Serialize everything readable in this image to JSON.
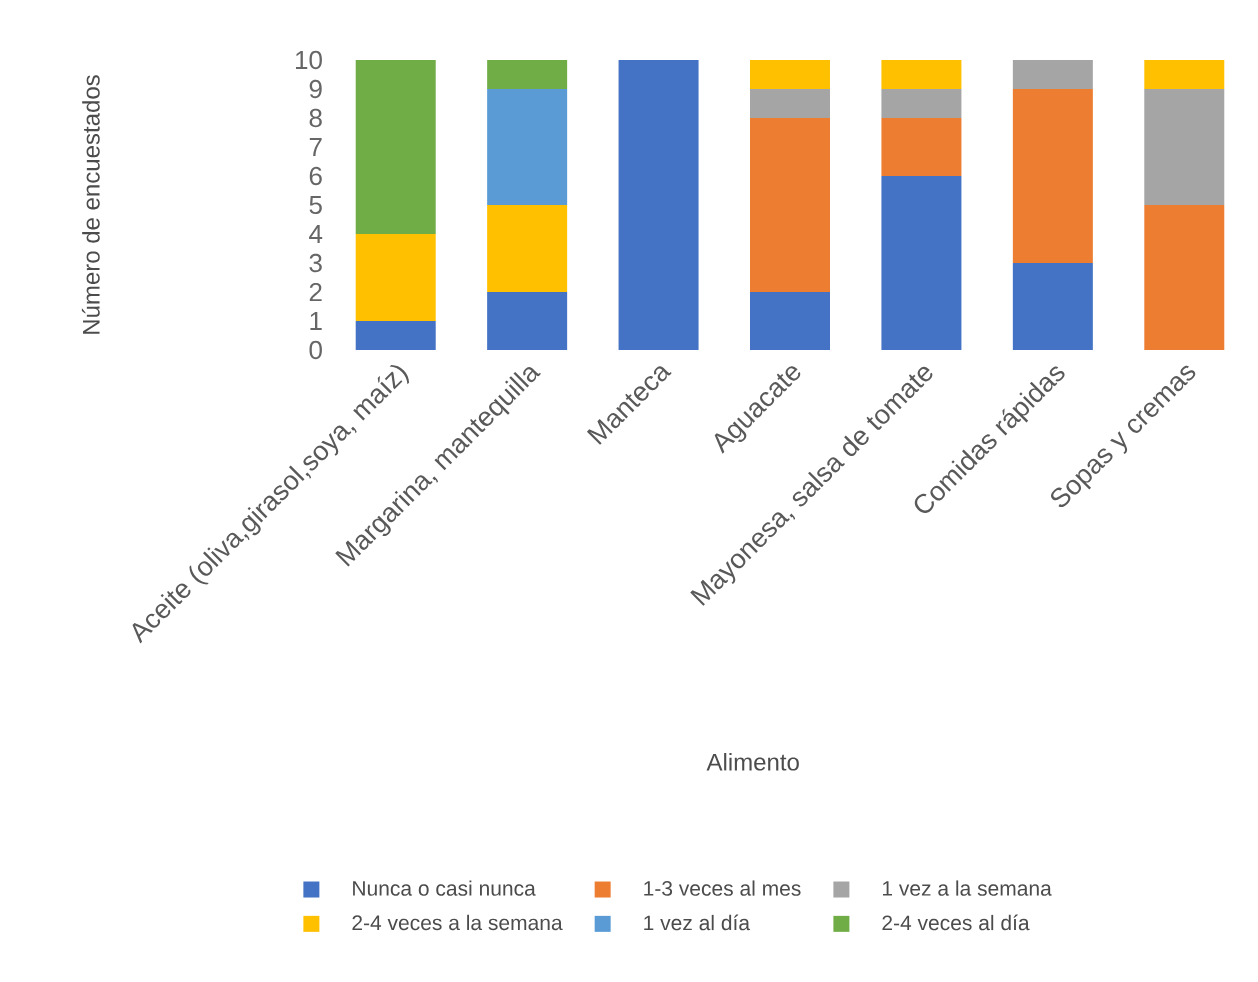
{
  "chart_data": {
    "type": "bar",
    "stacked": true,
    "xlabel": "Alimento",
    "ylabel": "Número de encuestados",
    "categories": [
      "Aceite (oliva,girasol,soya, maíz)",
      "Margarina, mantequilla",
      "Manteca",
      "Aguacate",
      "Mayonesa, salsa de tomate",
      "Comidas rápidas",
      "Sopas y cremas"
    ],
    "series": [
      {
        "name": "Nunca o casi nunca",
        "color": "#4472c4",
        "values": [
          1,
          2,
          10,
          2,
          6,
          3,
          0
        ]
      },
      {
        "name": "1-3 veces al mes",
        "color": "#ed7d31",
        "values": [
          0,
          0,
          0,
          6,
          2,
          6,
          5
        ]
      },
      {
        "name": "1 vez a la semana",
        "color": "#a5a5a5",
        "values": [
          0,
          0,
          0,
          1,
          1,
          1,
          4
        ]
      },
      {
        "name": "2-4 veces a la semana",
        "color": "#ffc000",
        "values": [
          3,
          3,
          0,
          1,
          1,
          0,
          1
        ]
      },
      {
        "name": "1 vez al día",
        "color": "#5b9bd5",
        "values": [
          0,
          4,
          0,
          0,
          0,
          0,
          0
        ]
      },
      {
        "name": "2-4 veces al día",
        "color": "#70ad47",
        "values": [
          6,
          1,
          0,
          0,
          0,
          0,
          0
        ]
      }
    ],
    "ylim": [
      0,
      10
    ],
    "yticks": [
      0,
      1,
      2,
      3,
      4,
      5,
      6,
      7,
      8,
      9,
      10
    ],
    "legend": "bottom"
  }
}
